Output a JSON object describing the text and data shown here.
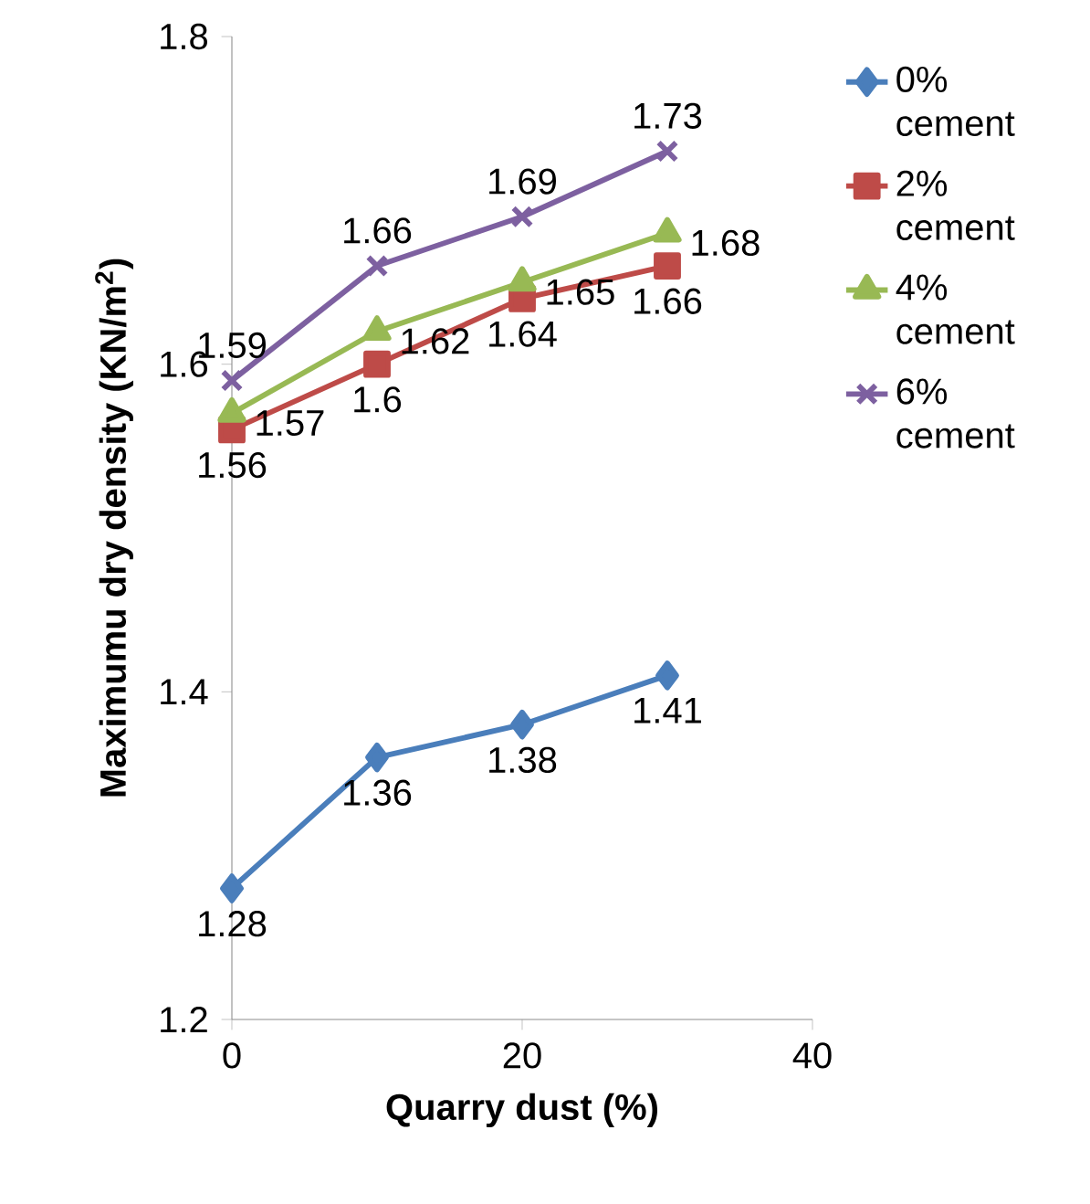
{
  "chart_data": {
    "type": "line",
    "xlabel": "Quarry dust (%)",
    "ylabel": "Maximumu dry density (KN/m$^{2}$)",
    "x": [
      0,
      10,
      20,
      30
    ],
    "xlim": [
      0,
      40
    ],
    "xticks": [
      0,
      20,
      40
    ],
    "ylim": [
      1.2,
      1.8
    ],
    "yticks": [
      1.2,
      1.4,
      1.6,
      1.8
    ],
    "legend": "right",
    "data_labels": true,
    "grid": false,
    "series": [
      {
        "name": "0% cement",
        "color": "#4a7ebb",
        "marker": "diamond",
        "values": [
          1.28,
          1.36,
          1.38,
          1.41
        ]
      },
      {
        "name": "2% cement",
        "color": "#be4b48",
        "marker": "square",
        "values": [
          1.56,
          1.6,
          1.64,
          1.66
        ]
      },
      {
        "name": "4% cement",
        "color": "#98b954",
        "marker": "triangle",
        "values": [
          1.57,
          1.62,
          1.65,
          1.68
        ]
      },
      {
        "name": "6% cement",
        "color": "#7d60a0",
        "marker": "cross",
        "values": [
          1.59,
          1.66,
          1.69,
          1.73
        ]
      }
    ]
  }
}
